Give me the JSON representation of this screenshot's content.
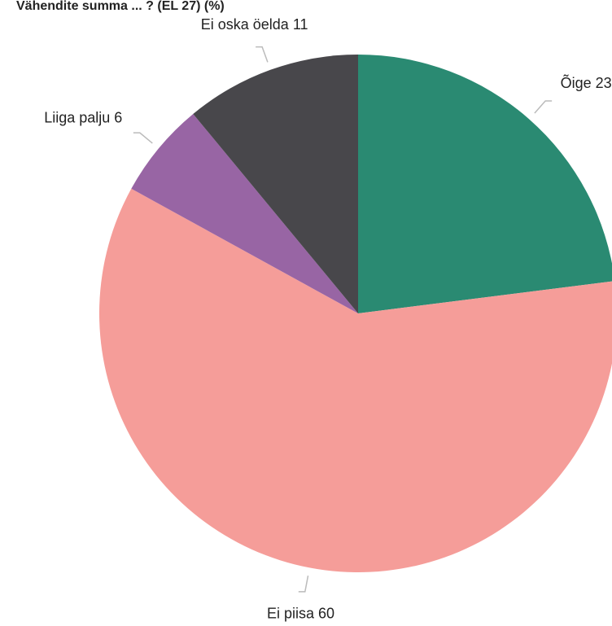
{
  "chart_data": {
    "type": "pie",
    "title": "Vähendite summa ... ? (EL 27) (%)",
    "categories": [
      "Õige",
      "Ei piisa",
      "Liiga palju",
      "Ei oska öelda"
    ],
    "values": [
      23,
      60,
      6,
      11
    ],
    "colors": [
      "#2a8a72",
      "#f59d99",
      "#9865a4",
      "#48474b"
    ]
  }
}
